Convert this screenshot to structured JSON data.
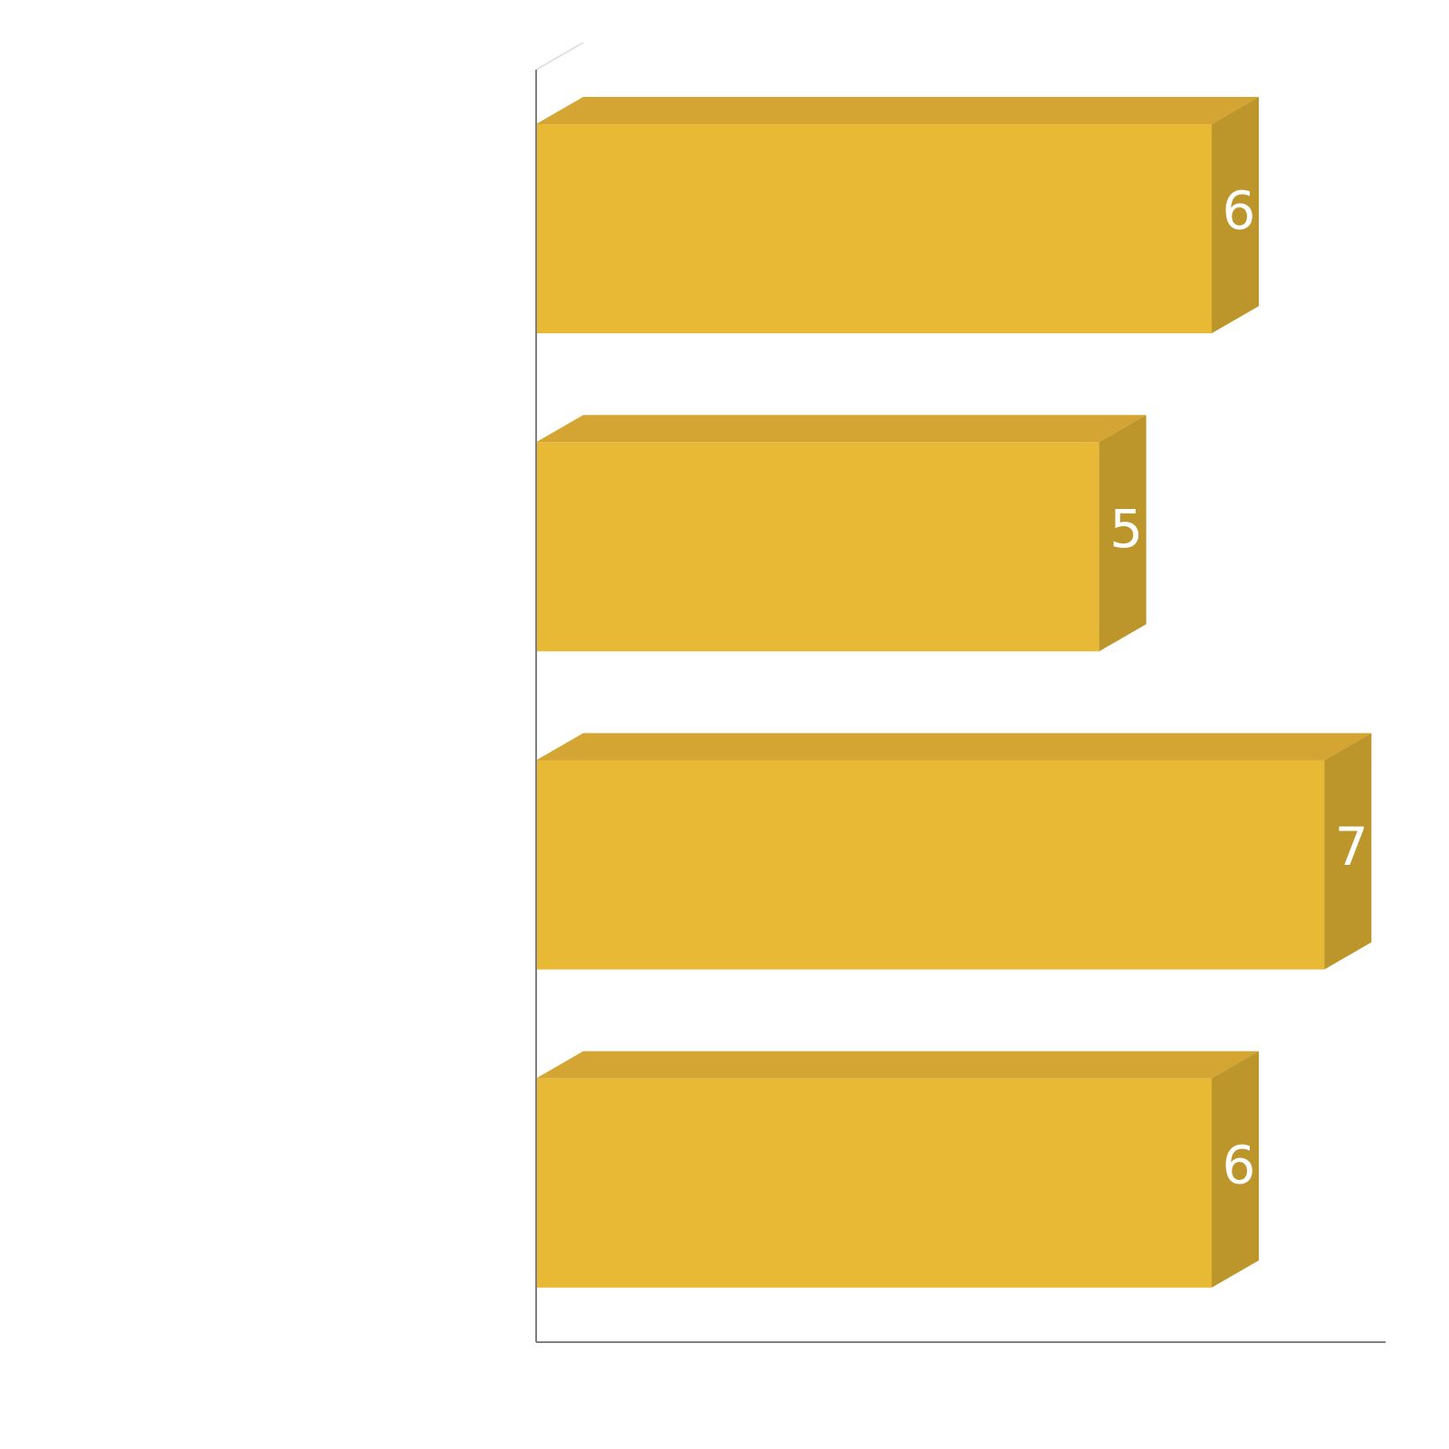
{
  "chart_data": {
    "type": "bar",
    "orientation": "horizontal",
    "style": "3d",
    "title": "",
    "xlabel": "",
    "ylabel": "",
    "categories": [
      "",
      "",
      "",
      ""
    ],
    "values": [
      6,
      5,
      7,
      6
    ],
    "value_labels": [
      "6",
      "5",
      "7",
      "6"
    ],
    "grid": false,
    "legend": "none",
    "colors": {
      "bar_front": "#E7B934",
      "bar_top": "#D4A532",
      "bar_side": "#BD962B",
      "axis": "#808080",
      "back_axis": "#E2E2E2",
      "label": "#FFFFFF"
    }
  }
}
